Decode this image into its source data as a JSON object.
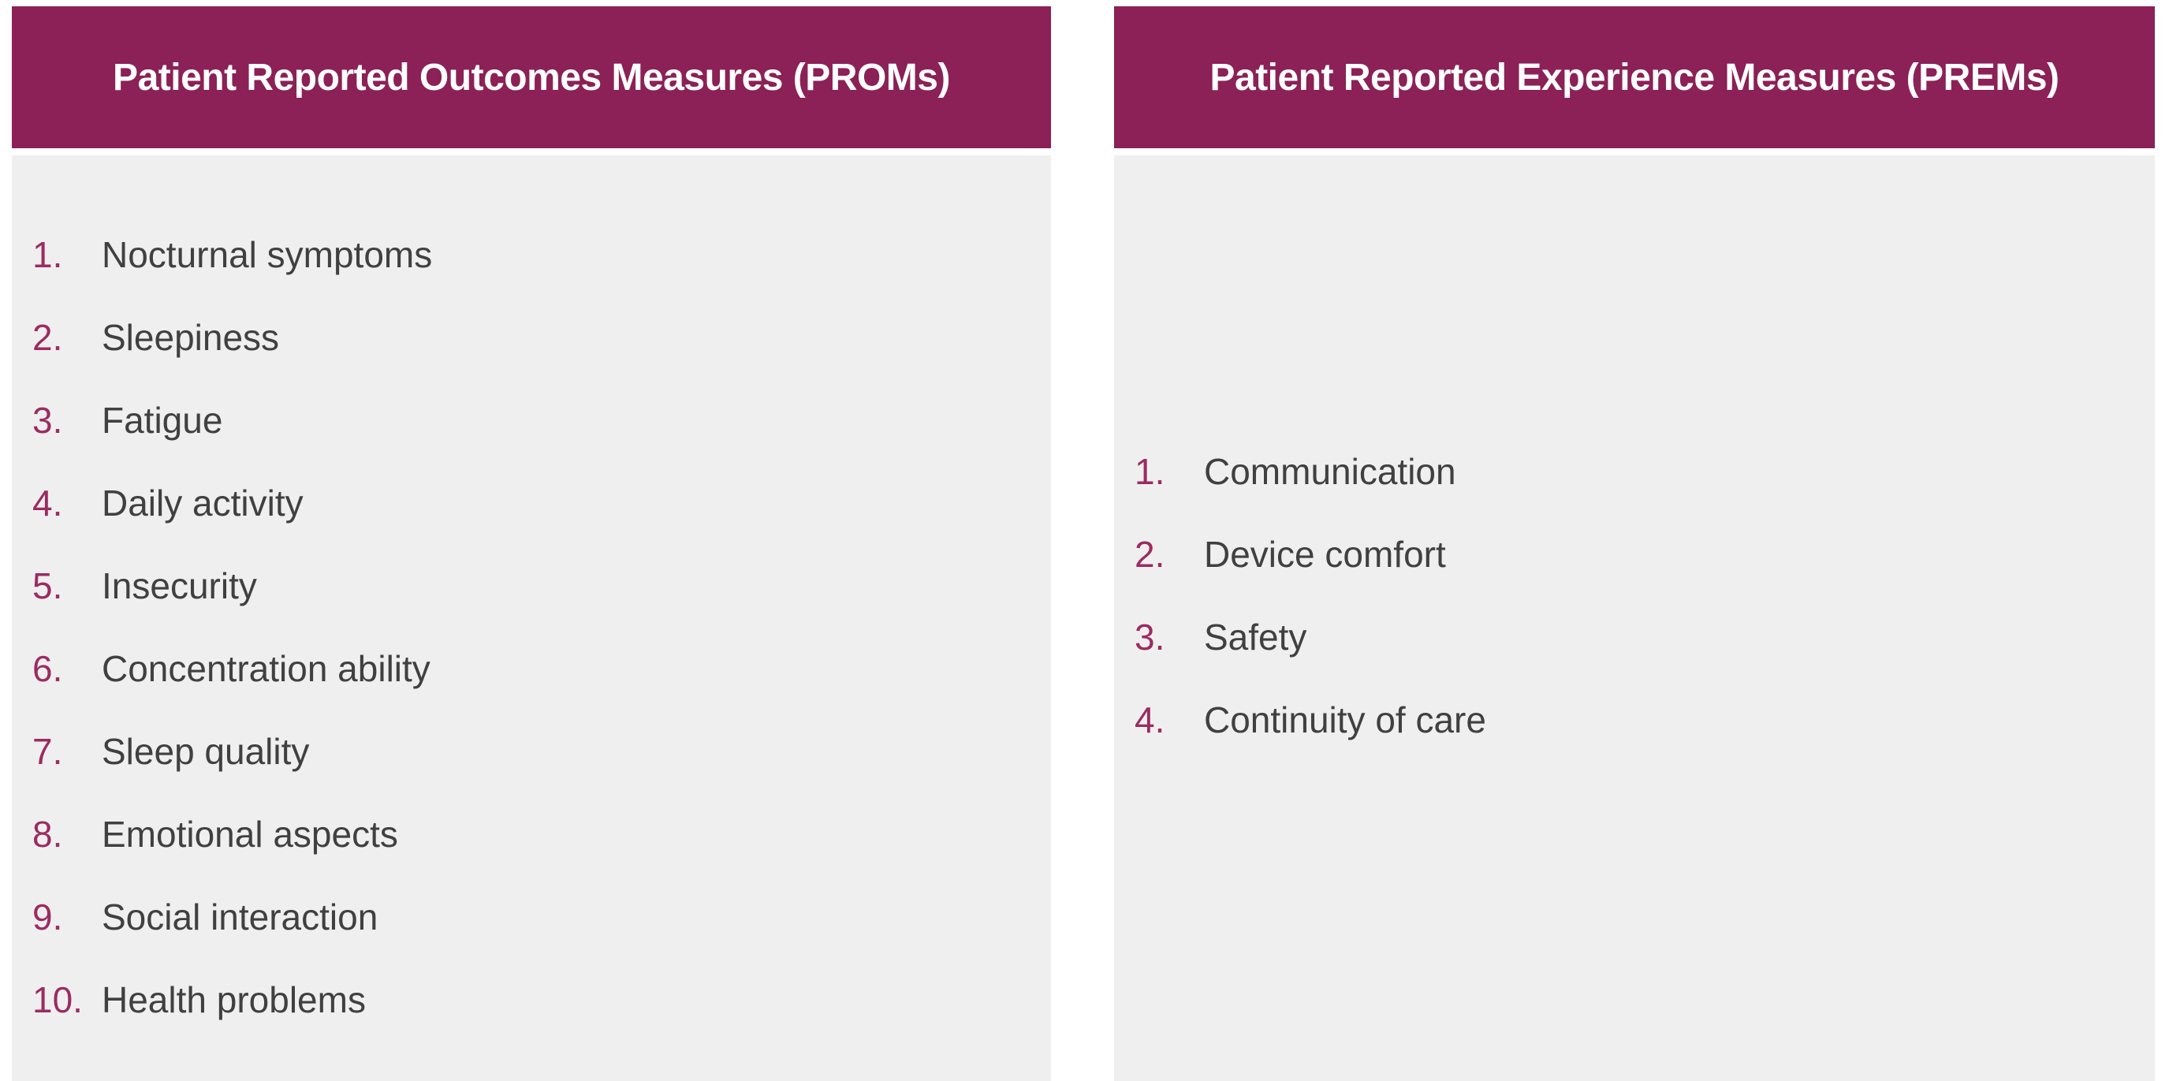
{
  "colors": {
    "header_bg": "#8B2156",
    "header_text": "#FFFFFF",
    "panel_bg": "#F0EFF0",
    "number_color": "#9A2C60",
    "item_text": "#404040",
    "page_bg": "#FFFFFF"
  },
  "panels": [
    {
      "title": "Patient Reported Outcomes Measures (PROMs)",
      "items": [
        {
          "num": "1.",
          "label": "Nocturnal symptoms"
        },
        {
          "num": "2.",
          "label": "Sleepiness"
        },
        {
          "num": "3.",
          "label": "Fatigue"
        },
        {
          "num": "4.",
          "label": "Daily activity"
        },
        {
          "num": "5.",
          "label": "Insecurity"
        },
        {
          "num": "6.",
          "label": "Concentration ability"
        },
        {
          "num": "7.",
          "label": "Sleep quality"
        },
        {
          "num": "8.",
          "label": "Emotional aspects"
        },
        {
          "num": "9.",
          "label": "Social interaction"
        },
        {
          "num": "10.",
          "label": "Health problems"
        }
      ]
    },
    {
      "title": "Patient Reported Experience Measures (PREMs)",
      "items": [
        {
          "num": "1.",
          "label": "Communication"
        },
        {
          "num": "2.",
          "label": "Device comfort"
        },
        {
          "num": "3.",
          "label": "Safety"
        },
        {
          "num": "4.",
          "label": "Continuity of care"
        }
      ]
    }
  ]
}
